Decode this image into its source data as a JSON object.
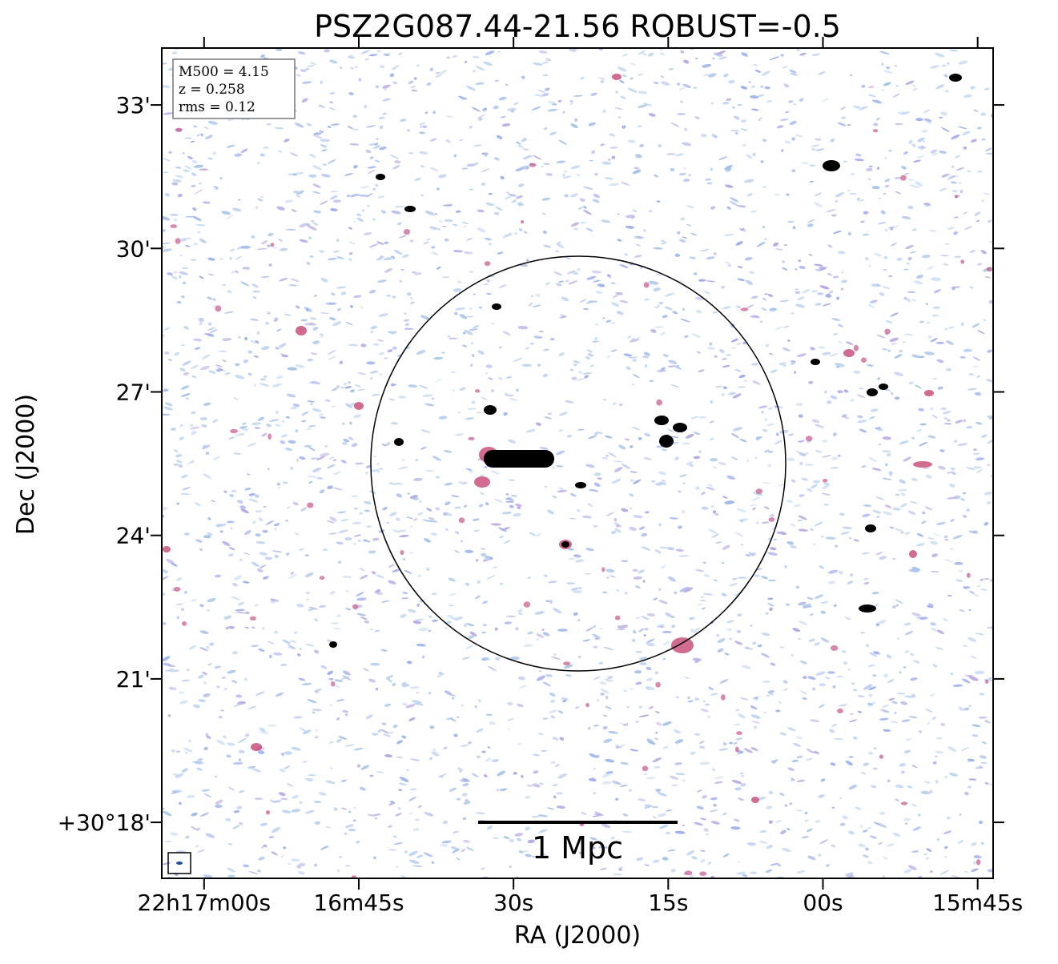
{
  "chart_data": {
    "type": "image",
    "title": "PSZ2G087.44-21.56 ROBUST=-0.5",
    "xlabel": "RA (J2000)",
    "ylabel": "Dec (J2000)",
    "xlim": [
      124.1,
      43.5
    ],
    "ylim": [
      16.83,
      34.19
    ],
    "xticks": [
      {
        "value": 120,
        "label": "22h17m00s"
      },
      {
        "value": 105,
        "label": "16m45s"
      },
      {
        "value": 90,
        "label": "30s"
      },
      {
        "value": 75,
        "label": "15s"
      },
      {
        "value": 60,
        "label": "00s"
      },
      {
        "value": 45,
        "label": "15m45s"
      }
    ],
    "yticks": [
      {
        "value": 18,
        "label": "+30°18'"
      },
      {
        "value": 21,
        "label": "21'"
      },
      {
        "value": 24,
        "label": "24'"
      },
      {
        "value": 27,
        "label": "27'"
      },
      {
        "value": 30,
        "label": "30'"
      },
      {
        "value": 33,
        "label": "33'"
      }
    ],
    "info": [
      "M500 = 4.15",
      "z = 0.258",
      "rms = 0.12"
    ],
    "scalebar_label": "1 Mpc"
  }
}
